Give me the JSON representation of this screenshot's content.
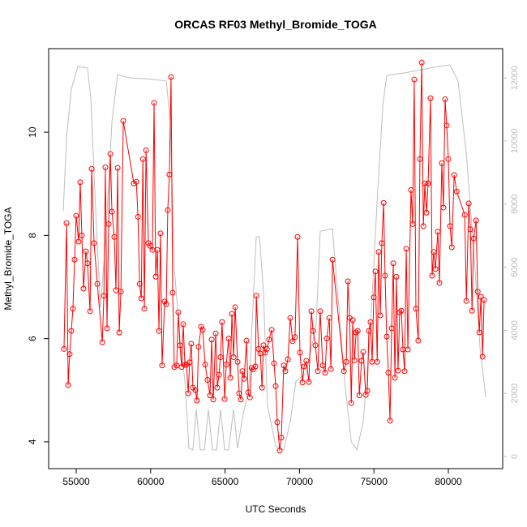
{
  "chart_data": {
    "type": "line",
    "title": "ORCAS RF03 Methyl_Bromide_TOGA",
    "x_label": "UTC Seconds",
    "y_label": "Methyl_Bromide_TOGA",
    "xlim": [
      53148,
      83649
    ],
    "ylim": [
      3.48,
      11.62
    ],
    "y2lim": [
      -385,
      12925
    ],
    "xticks": [
      55000,
      60000,
      65000,
      70000,
      75000,
      80000
    ],
    "yticks": [
      4,
      6,
      8,
      10
    ],
    "y2ticks": [
      0,
      2000,
      4000,
      6000,
      8000,
      10000,
      12000
    ],
    "series": [
      {
        "color": "#ff0000",
        "markers": true,
        "x": [
          54180,
          54350,
          54460,
          54560,
          54670,
          54780,
          54890,
          55000,
          55160,
          55270,
          55380,
          55490,
          55650,
          55760,
          55930,
          56040,
          56200,
          56420,
          56750,
          56860,
          56960,
          57070,
          57180,
          57290,
          57400,
          57560,
          57670,
          57780,
          57890,
          58000,
          58160,
          58870,
          59040,
          59150,
          59260,
          59370,
          59480,
          59580,
          59690,
          59850,
          59960,
          60120,
          60230,
          60340,
          60450,
          60560,
          60660,
          60770,
          60940,
          61050,
          61150,
          61260,
          61370,
          61480,
          61590,
          61750,
          61860,
          61970,
          62080,
          62190,
          62300,
          62410,
          62520,
          62620,
          62730,
          62840,
          63010,
          63110,
          63220,
          63390,
          63500,
          63660,
          63820,
          63990,
          64100,
          64210,
          64370,
          64480,
          64590,
          64690,
          64800,
          64970,
          65080,
          65240,
          65350,
          65460,
          65570,
          65680,
          65840,
          65950,
          66060,
          66170,
          66280,
          66440,
          66550,
          66670,
          66780,
          66890,
          67040,
          67100,
          67250,
          67370,
          67480,
          67580,
          67700,
          67810,
          67960,
          68130,
          68290,
          68400,
          68510,
          68670,
          68780,
          68940,
          69050,
          69220,
          69380,
          69540,
          69700,
          69870,
          70030,
          70200,
          70310,
          70460,
          70630,
          70800,
          70910,
          71070,
          71230,
          71390,
          71560,
          71720,
          71830,
          72000,
          72110,
          72220,
          72980,
          73140,
          73250,
          73370,
          73480,
          73580,
          73690,
          73800,
          73910,
          74020,
          74170,
          74280,
          74450,
          74560,
          74660,
          74770,
          74880,
          74990,
          75100,
          75220,
          75320,
          75430,
          75530,
          75650,
          75750,
          75860,
          75970,
          76080,
          76190,
          76300,
          76410,
          76510,
          76620,
          76730,
          76840,
          76950,
          77060,
          77170,
          77280,
          77490,
          77600,
          77710,
          77820,
          77980,
          78090,
          78210,
          78320,
          78420,
          78530,
          78640,
          78800,
          78910,
          79020,
          79130,
          79290,
          79400,
          79560,
          79670,
          79780,
          79890,
          80000,
          80110,
          80230,
          80390,
          80560,
          81100,
          81210,
          81370,
          81480,
          81590,
          81700,
          81860,
          81970,
          82080,
          82190,
          82300,
          82400
        ],
        "values": [
          5.8,
          8.24,
          5.1,
          5.7,
          6.15,
          6.58,
          7.53,
          8.38,
          7.88,
          9.03,
          8.0,
          6.97,
          7.69,
          7.46,
          6.53,
          9.29,
          7.85,
          7.06,
          5.93,
          6.83,
          9.32,
          6.2,
          8.22,
          9.58,
          8.46,
          7.97,
          6.94,
          9.31,
          6.12,
          6.91,
          10.22,
          9.01,
          9.04,
          8.36,
          7.06,
          6.78,
          9.48,
          6.58,
          9.65,
          7.85,
          7.8,
          7.72,
          10.57,
          7.2,
          7.72,
          6.15,
          8.04,
          5.48,
          6.72,
          6.67,
          8.49,
          9.18,
          11.07,
          6.89,
          5.45,
          5.48,
          6.51,
          5.87,
          5.45,
          6.28,
          5.49,
          5.5,
          4.94,
          5.54,
          5.9,
          5.05,
          5.0,
          4.8,
          5.84,
          6.23,
          6.17,
          5.5,
          5.2,
          4.9,
          5.98,
          4.82,
          6.1,
          5.05,
          5.3,
          5.64,
          6.32,
          4.83,
          5.5,
          6.0,
          5.24,
          6.48,
          5.64,
          6.61,
          5.55,
          4.94,
          4.82,
          5.37,
          5.22,
          5.96,
          4.96,
          4.86,
          5.43,
          5.4,
          5.46,
          6.83,
          5.8,
          5.71,
          5.05,
          5.87,
          5.73,
          5.8,
          5.98,
          6.17,
          5.52,
          5.08,
          4.38,
          3.83,
          4.08,
          5.48,
          5.37,
          5.6,
          6.4,
          5.95,
          6.03,
          7.97,
          5.73,
          5.15,
          5.46,
          5.57,
          5.16,
          6.53,
          6.15,
          5.87,
          5.37,
          6.53,
          5.48,
          5.34,
          6.0,
          6.4,
          5.41,
          7.53,
          5.37,
          5.55,
          7.11,
          6.4,
          4.75,
          6.36,
          5.58,
          6.12,
          6.15,
          4.9,
          5.57,
          5.74,
          4.91,
          4.99,
          6.15,
          6.32,
          5.55,
          6.8,
          7.3,
          5.55,
          7.68,
          6.45,
          7.85,
          8.63,
          7.22,
          6.04,
          5.34,
          4.41,
          6.2,
          7.46,
          5.24,
          7.2,
          5.38,
          6.51,
          6.54,
          5.79,
          5.37,
          7.74,
          5.79,
          8.88,
          8.22,
          11.02,
          6.58,
          5.96,
          9.48,
          11.35,
          8.18,
          9.01,
          8.44,
          9.01,
          10.66,
          7.22,
          7.68,
          7.35,
          8.07,
          7.08,
          9.4,
          8.54,
          10.64,
          10.13,
          9.48,
          8.18,
          7.77,
          9.17,
          8.85,
          8.4,
          6.73,
          8.62,
          8.12,
          6.54,
          7.94,
          8.29,
          6.91,
          6.12,
          6.81,
          5.65,
          6.75
        ]
      },
      {
        "color": "#bebebe",
        "axis": "y2",
        "markers": false,
        "x": [
          54130,
          54350,
          54670,
          55110,
          55760,
          55980,
          56310,
          56630,
          56960,
          57400,
          57780,
          58590,
          60230,
          61050,
          61320,
          61590,
          61970,
          62300,
          62570,
          62840,
          63060,
          63330,
          63610,
          63880,
          64150,
          64430,
          64700,
          64970,
          65240,
          65570,
          65840,
          66220,
          66600,
          66870,
          67090,
          67310,
          67580,
          67850,
          68400,
          68940,
          69380,
          69760,
          70460,
          71120,
          71390,
          72210,
          72650,
          73030,
          73480,
          73860,
          74280,
          74720,
          75210,
          75600,
          75860,
          77110,
          79290,
          80110,
          80650,
          81210,
          81750,
          82130,
          82510
        ],
        "values": [
          7790,
          10100,
          11640,
          12360,
          12310,
          11390,
          7790,
          4710,
          6760,
          10610,
          12100,
          12000,
          11950,
          11900,
          10610,
          5990,
          3680,
          2390,
          260,
          210,
          1490,
          210,
          210,
          1490,
          210,
          210,
          1490,
          210,
          210,
          1490,
          260,
          1360,
          2130,
          4700,
          6960,
          6960,
          5220,
          1620,
          330,
          210,
          1110,
          2390,
          2650,
          4190,
          7140,
          7220,
          4700,
          2390,
          460,
          210,
          1110,
          3680,
          8040,
          11130,
          12080,
          12160,
          12360,
          12410,
          11900,
          9590,
          6240,
          3420,
          1880
        ]
      }
    ]
  }
}
